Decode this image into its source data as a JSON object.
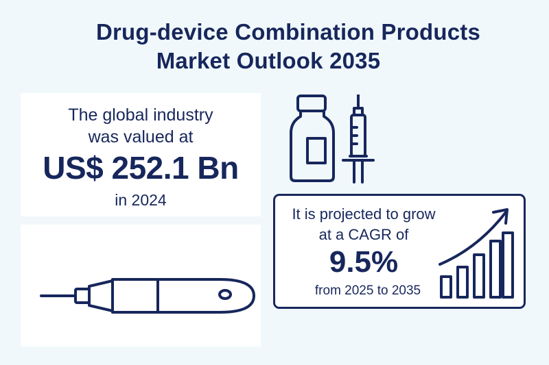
{
  "title": {
    "line1": "Drug-device Combination Products",
    "line2": "Market Outlook 2035"
  },
  "market_value": {
    "line1": "The global industry",
    "line2": "was valued at",
    "amount": "US$ 252.1 Bn",
    "year_text": "in 2024"
  },
  "growth": {
    "line1": "It is projected to grow",
    "line2": "at a CAGR of",
    "rate": "9.5%",
    "period": "from 2025 to 2035"
  },
  "icons": [
    "vial-icon",
    "syringe-icon",
    "auto-injector-pen-icon",
    "growth-chart-icon"
  ],
  "colors": {
    "primary": "#17275c",
    "background": "#f1f8fb",
    "card": "#ffffff"
  }
}
